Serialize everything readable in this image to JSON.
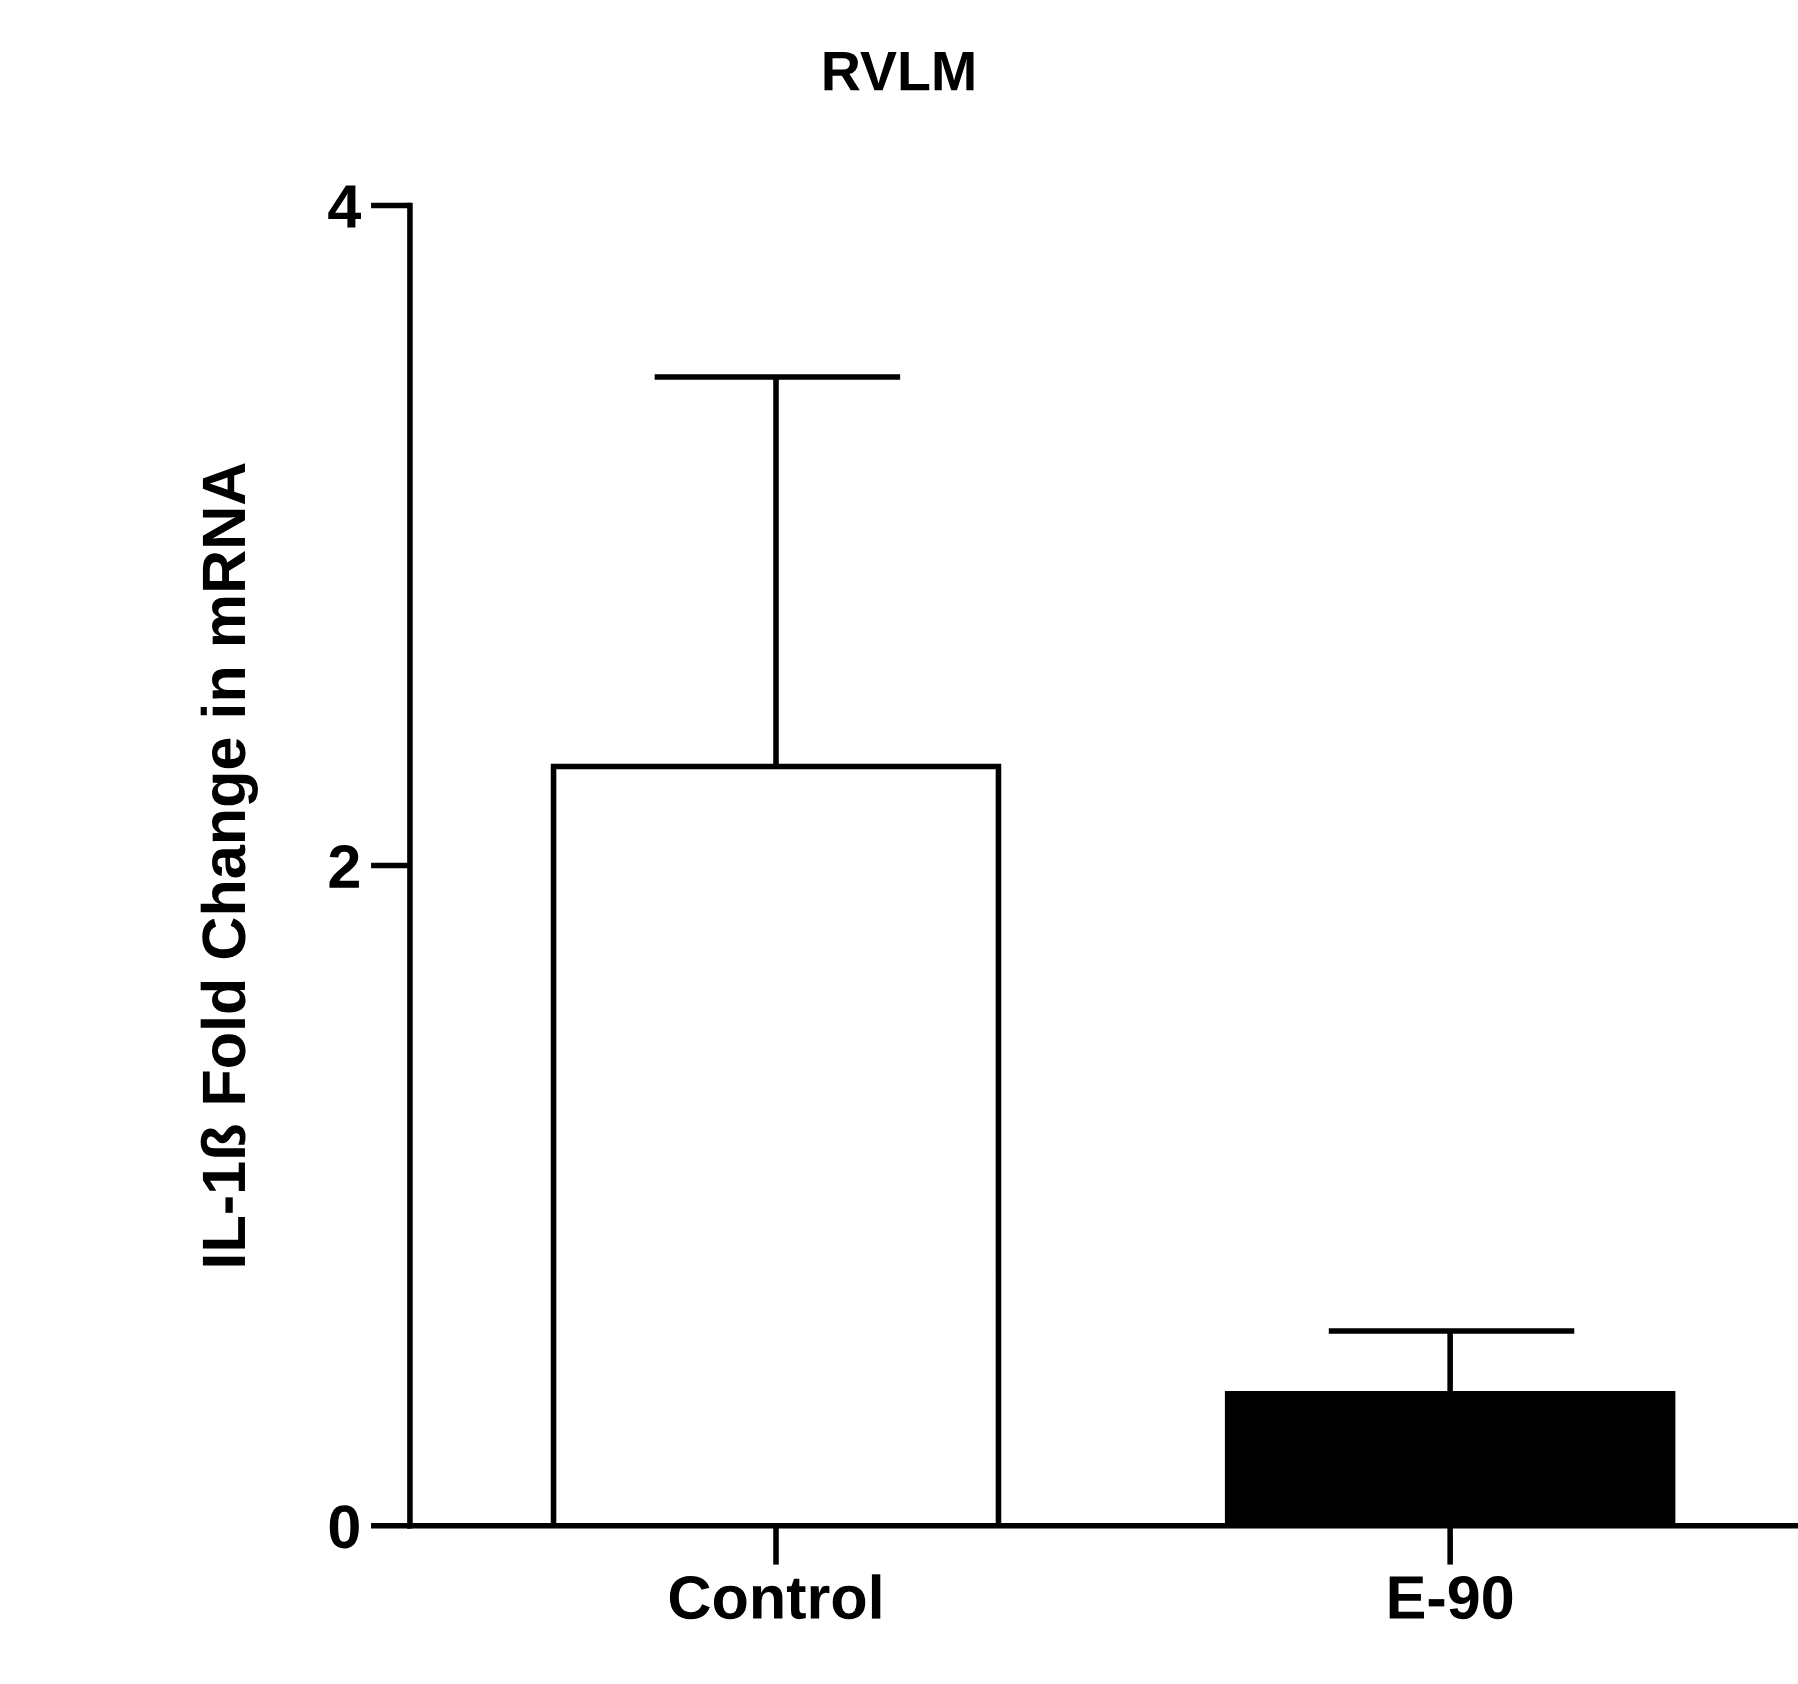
{
  "chart_data": {
    "type": "bar",
    "title": "RVLM",
    "ylabel": "IL-1ß Fold Change in mRNA",
    "categories": [
      "Control",
      "E-90"
    ],
    "values": [
      2.3,
      0.4
    ],
    "colors": [
      "#ffffff",
      "#000000"
    ],
    "errors": [
      [
        2.3,
        3.48
      ],
      [
        0.4,
        0.59
      ]
    ],
    "ylim": [
      0,
      4
    ],
    "yticks": [
      0,
      2,
      4
    ],
    "grid": false,
    "legend": false
  }
}
